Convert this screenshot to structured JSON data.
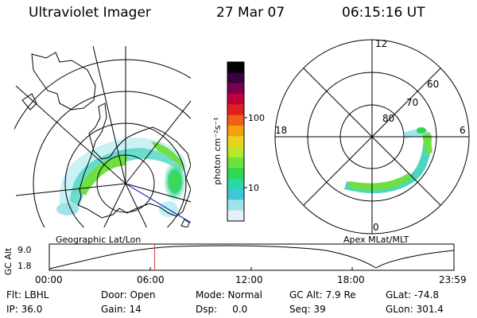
{
  "header": {
    "instrument": "Ultraviolet Imager",
    "date": "27 Mar 07",
    "time": "06:15:16 UT"
  },
  "left_panel": {
    "caption": "Geographic Lat/Lon"
  },
  "right_panel": {
    "caption": "Apex MLat/MLT",
    "mlt_labels": {
      "top": "12",
      "left": "18",
      "right": "6",
      "bottom": "0"
    },
    "lat_labels": [
      "60",
      "70",
      "80"
    ]
  },
  "colorbar": {
    "unit_label": "photon cm⁻²s⁻¹",
    "ticks": [
      "100",
      "10"
    ],
    "colors": [
      "#000000",
      "#3a0040",
      "#7a0050",
      "#c0003a",
      "#e0201e",
      "#f06018",
      "#f5a010",
      "#e8d41a",
      "#b8e62a",
      "#6ee040",
      "#30d850",
      "#28d8a8",
      "#40c8d8",
      "#9ee2ec",
      "#e4f2f6"
    ]
  },
  "altitude_plot": {
    "axis_label": "GC Alt",
    "y_ticks": [
      "9.0",
      "1.8"
    ],
    "x_ticks": [
      "00:00",
      "06:00",
      "12:00",
      "18:00",
      "23:59"
    ],
    "marker_time_hours": 6.25,
    "marker_color": "#d04040"
  },
  "status": {
    "flt": "Flt: LBHL",
    "ip": "IP: 36.0",
    "door": "Door: Open",
    "gain": "Gain: 14",
    "mode": "Mode: Normal",
    "dsp": "Dsp:     0.0",
    "gc_alt": "GC Alt: 7.9 Re",
    "seq": "Seq: 39",
    "glat": "GLat: -74.8",
    "glon": "GLon: 301.4"
  }
}
